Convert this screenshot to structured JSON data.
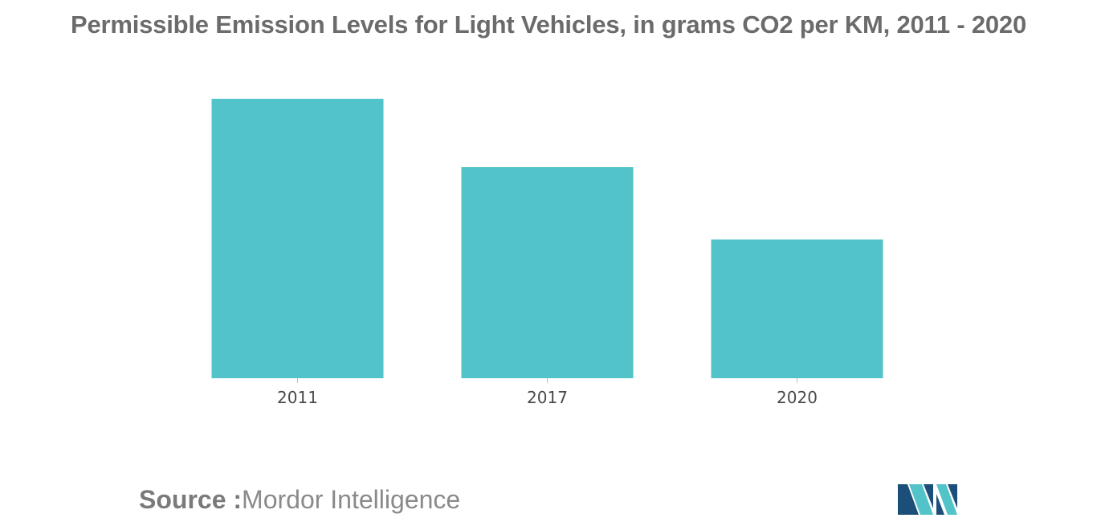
{
  "chart_data": {
    "type": "bar",
    "title": "Permissible Emission Levels for Light Vehicles, in grams CO2 per KM, 2011 - 2020",
    "categories": [
      "2011",
      "2017",
      "2020"
    ],
    "values": [
      135,
      102,
      67
    ],
    "xlabel": "",
    "ylabel": "",
    "ylim": [
      0,
      135
    ],
    "grid": false,
    "legend": "none",
    "bar_color": "#52c3c9"
  },
  "source": {
    "label": "Source :",
    "text": "Mordor Intelligence"
  },
  "logo": {
    "icon": "mordor-intelligence-logo-icon",
    "colors": [
      "#1b4f7a",
      "#52c3c9"
    ]
  }
}
